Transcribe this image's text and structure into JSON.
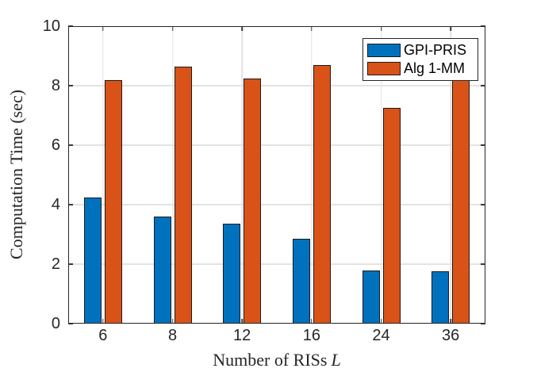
{
  "chart_data": {
    "type": "bar",
    "title": "",
    "xlabel_main": "Number of RISs",
    "xlabel_var": "L",
    "ylabel": "Computation Time (sec)",
    "categories": [
      "6",
      "8",
      "12",
      "16",
      "24",
      "36"
    ],
    "series": [
      {
        "name": "GPI-PRIS",
        "color": "#0072BD",
        "values": [
          4.25,
          3.6,
          3.35,
          2.85,
          1.8,
          1.75
        ]
      },
      {
        "name": "Alg 1-MM",
        "color": "#D95319",
        "values": [
          8.2,
          8.65,
          8.25,
          8.7,
          7.25,
          8.2
        ]
      }
    ],
    "ylim": [
      0,
      10
    ],
    "yticks": [
      0,
      2,
      4,
      6,
      8,
      10
    ],
    "grid": true,
    "legend_position": "top-right",
    "colors": {
      "bar_edge": "#1a1a1a",
      "grid": "#e3e3e3",
      "axis": "#262626",
      "background": "#ffffff"
    }
  }
}
